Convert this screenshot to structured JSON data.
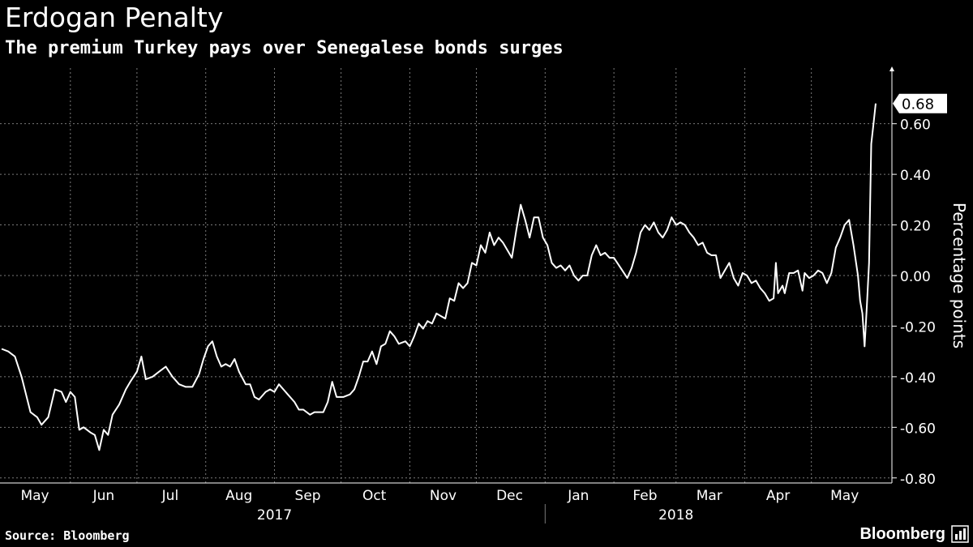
{
  "header": {
    "title": "Erdogan Penalty",
    "subtitle": "The premium Turkey pays over Senegalese bonds surges"
  },
  "footer": {
    "source": "Source: Bloomberg",
    "brand": "Bloomberg"
  },
  "colors": {
    "background": "#000000",
    "line": "#ffffff",
    "grid": "#7a7a7a",
    "text": "#ffffff"
  },
  "chart_data": {
    "type": "line",
    "title": "Erdogan Penalty",
    "subtitle": "The premium Turkey pays over Senegalese bonds surges",
    "ylabel": "Percentage points",
    "ylim": [
      -0.82,
      0.82
    ],
    "yticks": [
      {
        "value": 0.6,
        "label": "0.60"
      },
      {
        "value": 0.4,
        "label": "0.40"
      },
      {
        "value": 0.2,
        "label": "0.20"
      },
      {
        "value": 0.0,
        "label": "0.00"
      },
      {
        "value": -0.2,
        "label": "-0.20"
      },
      {
        "value": -0.4,
        "label": "-0.40"
      },
      {
        "value": -0.6,
        "label": "-0.60"
      },
      {
        "value": -0.8,
        "label": "-0.80"
      }
    ],
    "grid": true,
    "xlim": [
      "2017-05-01",
      "2018-05-30"
    ],
    "x_month_labels": [
      {
        "label": "May",
        "date": "2017-05-16"
      },
      {
        "label": "Jun",
        "date": "2017-06-16"
      },
      {
        "label": "Jul",
        "date": "2017-07-16"
      },
      {
        "label": "Aug",
        "date": "2017-08-16"
      },
      {
        "label": "Sep",
        "date": "2017-09-16"
      },
      {
        "label": "Oct",
        "date": "2017-10-16"
      },
      {
        "label": "Nov",
        "date": "2017-11-16"
      },
      {
        "label": "Dec",
        "date": "2017-12-16"
      },
      {
        "label": "Jan",
        "date": "2018-01-16"
      },
      {
        "label": "Feb",
        "date": "2018-02-15"
      },
      {
        "label": "Mar",
        "date": "2018-03-16"
      },
      {
        "label": "Apr",
        "date": "2018-04-16"
      },
      {
        "label": "May",
        "date": "2018-05-16"
      }
    ],
    "x_year_labels": [
      {
        "label": "2017",
        "date": "2017-09-01"
      },
      {
        "label": "2018",
        "date": "2018-03-01"
      }
    ],
    "year_divider_date": "2018-01-01",
    "month_gridlines": [
      "2017-06-01",
      "2017-07-01",
      "2017-08-01",
      "2017-09-01",
      "2017-10-01",
      "2017-11-01",
      "2017-12-01",
      "2018-01-01",
      "2018-02-01",
      "2018-03-01",
      "2018-04-01",
      "2018-05-01"
    ],
    "last_value_label": "0.68",
    "series": [
      {
        "name": "",
        "points": [
          [
            "2017-05-01",
            -0.29
          ],
          [
            "2017-05-04",
            -0.3
          ],
          [
            "2017-05-07",
            -0.32
          ],
          [
            "2017-05-10",
            -0.4
          ],
          [
            "2017-05-12",
            -0.47
          ],
          [
            "2017-05-14",
            -0.54
          ],
          [
            "2017-05-17",
            -0.56
          ],
          [
            "2017-05-19",
            -0.59
          ],
          [
            "2017-05-22",
            -0.56
          ],
          [
            "2017-05-25",
            -0.45
          ],
          [
            "2017-05-28",
            -0.46
          ],
          [
            "2017-05-30",
            -0.5
          ],
          [
            "2017-06-01",
            -0.46
          ],
          [
            "2017-06-03",
            -0.48
          ],
          [
            "2017-06-05",
            -0.61
          ],
          [
            "2017-06-07",
            -0.6
          ],
          [
            "2017-06-10",
            -0.62
          ],
          [
            "2017-06-12",
            -0.63
          ],
          [
            "2017-06-14",
            -0.69
          ],
          [
            "2017-06-16",
            -0.61
          ],
          [
            "2017-06-18",
            -0.63
          ],
          [
            "2017-06-20",
            -0.55
          ],
          [
            "2017-06-23",
            -0.51
          ],
          [
            "2017-06-26",
            -0.45
          ],
          [
            "2017-06-28",
            -0.42
          ],
          [
            "2017-07-01",
            -0.38
          ],
          [
            "2017-07-03",
            -0.32
          ],
          [
            "2017-07-05",
            -0.41
          ],
          [
            "2017-07-08",
            -0.4
          ],
          [
            "2017-07-11",
            -0.38
          ],
          [
            "2017-07-14",
            -0.36
          ],
          [
            "2017-07-17",
            -0.4
          ],
          [
            "2017-07-20",
            -0.43
          ],
          [
            "2017-07-23",
            -0.44
          ],
          [
            "2017-07-26",
            -0.44
          ],
          [
            "2017-07-29",
            -0.39
          ],
          [
            "2017-07-31",
            -0.33
          ],
          [
            "2017-08-02",
            -0.28
          ],
          [
            "2017-08-04",
            -0.26
          ],
          [
            "2017-08-06",
            -0.32
          ],
          [
            "2017-08-08",
            -0.36
          ],
          [
            "2017-08-10",
            -0.35
          ],
          [
            "2017-08-12",
            -0.36
          ],
          [
            "2017-08-14",
            -0.33
          ],
          [
            "2017-08-16",
            -0.38
          ],
          [
            "2017-08-19",
            -0.43
          ],
          [
            "2017-08-21",
            -0.43
          ],
          [
            "2017-08-23",
            -0.48
          ],
          [
            "2017-08-25",
            -0.49
          ],
          [
            "2017-08-28",
            -0.46
          ],
          [
            "2017-08-30",
            -0.45
          ],
          [
            "2017-09-01",
            -0.46
          ],
          [
            "2017-09-03",
            -0.43
          ],
          [
            "2017-09-05",
            -0.45
          ],
          [
            "2017-09-07",
            -0.47
          ],
          [
            "2017-09-10",
            -0.5
          ],
          [
            "2017-09-12",
            -0.53
          ],
          [
            "2017-09-14",
            -0.53
          ],
          [
            "2017-09-17",
            -0.55
          ],
          [
            "2017-09-19",
            -0.54
          ],
          [
            "2017-09-21",
            -0.54
          ],
          [
            "2017-09-23",
            -0.54
          ],
          [
            "2017-09-25",
            -0.5
          ],
          [
            "2017-09-27",
            -0.42
          ],
          [
            "2017-09-29",
            -0.48
          ],
          [
            "2017-10-02",
            -0.48
          ],
          [
            "2017-10-05",
            -0.47
          ],
          [
            "2017-10-07",
            -0.45
          ],
          [
            "2017-10-09",
            -0.4
          ],
          [
            "2017-10-11",
            -0.34
          ],
          [
            "2017-10-13",
            -0.34
          ],
          [
            "2017-10-15",
            -0.3
          ],
          [
            "2017-10-17",
            -0.35
          ],
          [
            "2017-10-19",
            -0.28
          ],
          [
            "2017-10-21",
            -0.27
          ],
          [
            "2017-10-23",
            -0.22
          ],
          [
            "2017-10-25",
            -0.24
          ],
          [
            "2017-10-27",
            -0.27
          ],
          [
            "2017-10-30",
            -0.26
          ],
          [
            "2017-11-01",
            -0.28
          ],
          [
            "2017-11-03",
            -0.24
          ],
          [
            "2017-11-05",
            -0.19
          ],
          [
            "2017-11-07",
            -0.21
          ],
          [
            "2017-11-09",
            -0.18
          ],
          [
            "2017-11-11",
            -0.19
          ],
          [
            "2017-11-13",
            -0.15
          ],
          [
            "2017-11-15",
            -0.16
          ],
          [
            "2017-11-17",
            -0.17
          ],
          [
            "2017-11-19",
            -0.09
          ],
          [
            "2017-11-21",
            -0.1
          ],
          [
            "2017-11-23",
            -0.03
          ],
          [
            "2017-11-25",
            -0.05
          ],
          [
            "2017-11-27",
            -0.03
          ],
          [
            "2017-11-29",
            0.05
          ],
          [
            "2017-12-01",
            0.04
          ],
          [
            "2017-12-03",
            0.12
          ],
          [
            "2017-12-05",
            0.09
          ],
          [
            "2017-12-07",
            0.17
          ],
          [
            "2017-12-09",
            0.12
          ],
          [
            "2017-12-11",
            0.15
          ],
          [
            "2017-12-13",
            0.13
          ],
          [
            "2017-12-15",
            0.1
          ],
          [
            "2017-12-17",
            0.07
          ],
          [
            "2017-12-19",
            0.18
          ],
          [
            "2017-12-21",
            0.28
          ],
          [
            "2017-12-23",
            0.22
          ],
          [
            "2017-12-25",
            0.15
          ],
          [
            "2017-12-27",
            0.23
          ],
          [
            "2017-12-29",
            0.23
          ],
          [
            "2017-12-31",
            0.15
          ],
          [
            "2018-01-02",
            0.12
          ],
          [
            "2018-01-04",
            0.05
          ],
          [
            "2018-01-06",
            0.03
          ],
          [
            "2018-01-08",
            0.04
          ],
          [
            "2018-01-10",
            0.02
          ],
          [
            "2018-01-12",
            0.04
          ],
          [
            "2018-01-14",
            0.0
          ],
          [
            "2018-01-16",
            -0.02
          ],
          [
            "2018-01-18",
            0.0
          ],
          [
            "2018-01-20",
            0.0
          ],
          [
            "2018-01-22",
            0.08
          ],
          [
            "2018-01-24",
            0.12
          ],
          [
            "2018-01-26",
            0.08
          ],
          [
            "2018-01-28",
            0.09
          ],
          [
            "2018-01-30",
            0.07
          ],
          [
            "2018-02-01",
            0.07
          ],
          [
            "2018-02-04",
            0.03
          ],
          [
            "2018-02-07",
            -0.01
          ],
          [
            "2018-02-09",
            0.03
          ],
          [
            "2018-02-11",
            0.09
          ],
          [
            "2018-02-13",
            0.17
          ],
          [
            "2018-02-15",
            0.2
          ],
          [
            "2018-02-17",
            0.18
          ],
          [
            "2018-02-19",
            0.21
          ],
          [
            "2018-02-21",
            0.17
          ],
          [
            "2018-02-23",
            0.15
          ],
          [
            "2018-02-25",
            0.18
          ],
          [
            "2018-02-27",
            0.23
          ],
          [
            "2018-03-01",
            0.2
          ],
          [
            "2018-03-03",
            0.21
          ],
          [
            "2018-03-05",
            0.2
          ],
          [
            "2018-03-07",
            0.17
          ],
          [
            "2018-03-09",
            0.15
          ],
          [
            "2018-03-11",
            0.12
          ],
          [
            "2018-03-13",
            0.13
          ],
          [
            "2018-03-15",
            0.09
          ],
          [
            "2018-03-17",
            0.08
          ],
          [
            "2018-03-19",
            0.08
          ],
          [
            "2018-03-21",
            -0.01
          ],
          [
            "2018-03-23",
            0.02
          ],
          [
            "2018-03-25",
            0.05
          ],
          [
            "2018-03-27",
            -0.01
          ],
          [
            "2018-03-29",
            -0.04
          ],
          [
            "2018-03-31",
            0.01
          ],
          [
            "2018-04-02",
            0.0
          ],
          [
            "2018-04-04",
            -0.03
          ],
          [
            "2018-04-06",
            -0.02
          ],
          [
            "2018-04-08",
            -0.05
          ],
          [
            "2018-04-10",
            -0.07
          ],
          [
            "2018-04-12",
            -0.1
          ],
          [
            "2018-04-14",
            -0.09
          ],
          [
            "2018-04-15",
            0.05
          ],
          [
            "2018-04-16",
            -0.07
          ],
          [
            "2018-04-18",
            -0.04
          ],
          [
            "2018-04-19",
            -0.07
          ],
          [
            "2018-04-21",
            0.01
          ],
          [
            "2018-04-23",
            0.01
          ],
          [
            "2018-04-25",
            0.02
          ],
          [
            "2018-04-27",
            -0.06
          ],
          [
            "2018-04-28",
            0.01
          ],
          [
            "2018-04-30",
            -0.01
          ],
          [
            "2018-05-02",
            0.0
          ],
          [
            "2018-05-04",
            0.02
          ],
          [
            "2018-05-06",
            0.01
          ],
          [
            "2018-05-08",
            -0.03
          ],
          [
            "2018-05-10",
            0.01
          ],
          [
            "2018-05-12",
            0.11
          ],
          [
            "2018-05-14",
            0.15
          ],
          [
            "2018-05-16",
            0.2
          ],
          [
            "2018-05-18",
            0.22
          ],
          [
            "2018-05-20",
            0.12
          ],
          [
            "2018-05-22",
            0.0
          ],
          [
            "2018-05-23",
            -0.1
          ],
          [
            "2018-05-24",
            -0.15
          ],
          [
            "2018-05-25",
            -0.28
          ],
          [
            "2018-05-26",
            -0.12
          ],
          [
            "2018-05-27",
            0.05
          ],
          [
            "2018-05-28",
            0.52
          ],
          [
            "2018-05-29",
            0.6
          ],
          [
            "2018-05-30",
            0.68
          ]
        ]
      }
    ]
  }
}
